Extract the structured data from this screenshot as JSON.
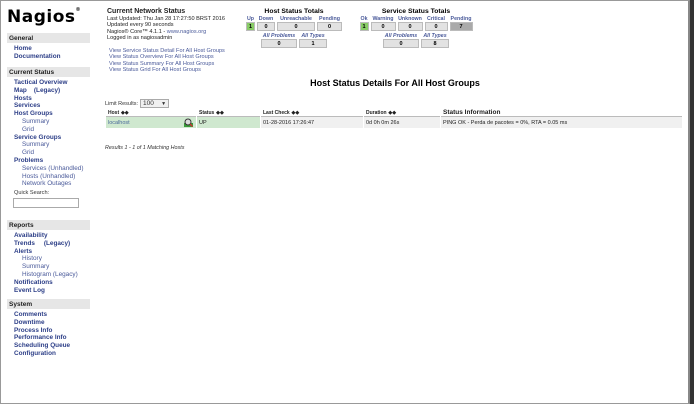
{
  "logo": "Nagios",
  "colors": {
    "up": "#88cc66",
    "ok": "#88cc66",
    "pending": "#aaaaaa",
    "row_up": "#cfe8cf"
  },
  "sidebar": {
    "general": {
      "title": "General",
      "items": [
        "Home",
        "Documentation"
      ]
    },
    "current_status": {
      "title": "Current Status",
      "tactical": "Tactical Overview",
      "map": "Map",
      "map_legacy": "(Legacy)",
      "hosts": "Hosts",
      "services": "Services",
      "host_groups": "Host Groups",
      "hg_summary": "Summary",
      "hg_grid": "Grid",
      "service_groups": "Service Groups",
      "sg_summary": "Summary",
      "sg_grid": "Grid",
      "problems": "Problems",
      "p_services": "Services",
      "p_services_unh": "Unhandled",
      "p_hosts": "Hosts",
      "p_hosts_unh": "Unhandled",
      "p_outages": "Network Outages",
      "quick_search": "Quick Search:"
    },
    "reports": {
      "title": "Reports",
      "availability": "Availability",
      "trends": "Trends",
      "trends_legacy": "(Legacy)",
      "alerts": "Alerts",
      "history": "History",
      "summary": "Summary",
      "histogram": "Histogram (Legacy)",
      "notifications": "Notifications",
      "event_log": "Event Log"
    },
    "system": {
      "title": "System",
      "items": [
        "Comments",
        "Downtime",
        "Process Info",
        "Performance Info",
        "Scheduling Queue",
        "Configuration"
      ]
    }
  },
  "info": {
    "title": "Current Network Status",
    "updated": "Last Updated: Thu Jan 28 17:27:50 BRST 2016",
    "every": "Updated every 90 seconds",
    "core": "Nagios® Core™ 4.1.1 - ",
    "core_link": "www.nagios.org",
    "logged": "Logged in as nagiosadmin"
  },
  "links": [
    "View Service Status Detail For All Host Groups",
    "View Status Overview For All Host Groups",
    "View Status Summary For All Host Groups",
    "View Status Grid For All Host Groups"
  ],
  "host_totals": {
    "title": "Host Status Totals",
    "labels": [
      "Up",
      "Down",
      "Unreachable",
      "Pending"
    ],
    "values": [
      "1",
      "0",
      "0",
      "0"
    ],
    "all_labels": [
      "All Problems",
      "All Types"
    ],
    "all_values": [
      "0",
      "1"
    ]
  },
  "service_totals": {
    "title": "Service Status Totals",
    "labels": [
      "Ok",
      "Warning",
      "Unknown",
      "Critical",
      "Pending"
    ],
    "values": [
      "1",
      "0",
      "0",
      "0",
      "7"
    ],
    "all_labels": [
      "All Problems",
      "All Types"
    ],
    "all_values": [
      "0",
      "8"
    ]
  },
  "page_title": "Host Status Details For All Host Groups",
  "limit": {
    "label": "Limit Results:",
    "value": "100"
  },
  "table": {
    "headers": [
      "Host",
      "Status",
      "Last Check",
      "Duration",
      "Status Information"
    ],
    "rows": [
      {
        "host": "localhost",
        "status": "UP",
        "last_check": "01-28-2016 17:26:47",
        "duration": "0d 0h 0m 26s",
        "info": "PING OK - Perda de pacotes = 0%, RTA = 0.05 ms"
      }
    ]
  },
  "results": "Results 1 - 1 of 1 Matching Hosts"
}
